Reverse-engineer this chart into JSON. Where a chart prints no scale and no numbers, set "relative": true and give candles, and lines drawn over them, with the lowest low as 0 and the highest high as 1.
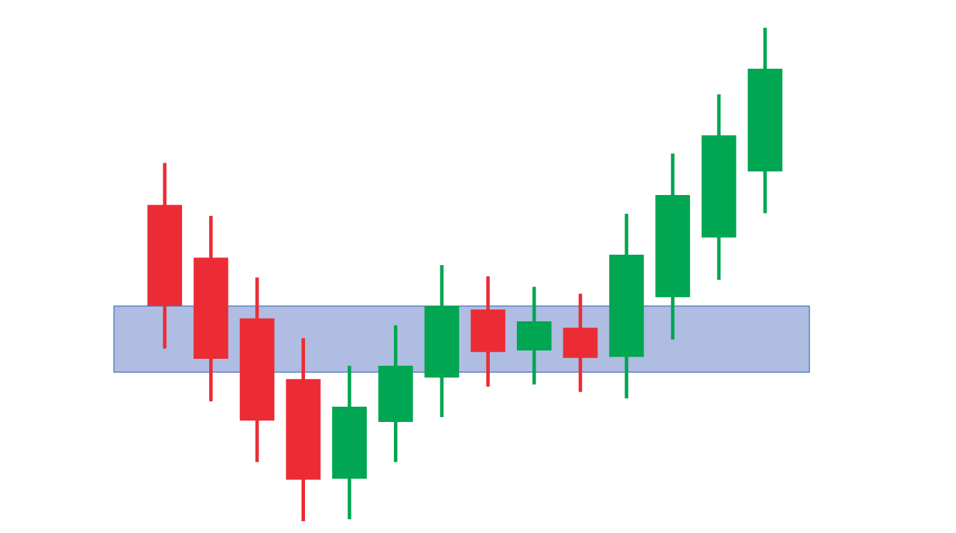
{
  "chart_data": {
    "type": "candlestick",
    "relative": true,
    "categories": [
      null,
      null,
      null,
      null,
      null,
      null,
      null,
      null,
      null,
      null,
      null,
      null,
      null,
      null
    ],
    "ohlc": [
      [
        0.641,
        0.726,
        0.35,
        0.436
      ],
      [
        0.534,
        0.619,
        0.243,
        0.329
      ],
      [
        0.411,
        0.494,
        0.12,
        0.204
      ],
      [
        0.288,
        0.371,
        0.0,
        0.084
      ],
      [
        0.086,
        0.315,
        0.004,
        0.232
      ],
      [
        0.201,
        0.397,
        0.12,
        0.315
      ],
      [
        0.291,
        0.519,
        0.211,
        0.436
      ],
      [
        0.429,
        0.496,
        0.273,
        0.343
      ],
      [
        0.346,
        0.475,
        0.277,
        0.405
      ],
      [
        0.392,
        0.461,
        0.262,
        0.331
      ],
      [
        0.333,
        0.623,
        0.249,
        0.54
      ],
      [
        0.454,
        0.745,
        0.368,
        0.661
      ],
      [
        0.575,
        0.865,
        0.489,
        0.782
      ],
      [
        0.709,
        1.0,
        0.624,
        0.917
      ]
    ],
    "colors": [
      "#ec2c34",
      "#ec2c34",
      "#ec2c34",
      "#ec2c34",
      "#00a651",
      "#00a651",
      "#00a651",
      "#ec2c34",
      "#00a651",
      "#ec2c34",
      "#00a651",
      "#00a651",
      "#00a651",
      "#00a651"
    ],
    "bands": [
      {
        "axis": "y",
        "from": 0.302,
        "to": 0.436,
        "color": "#aebde1"
      }
    ]
  }
}
